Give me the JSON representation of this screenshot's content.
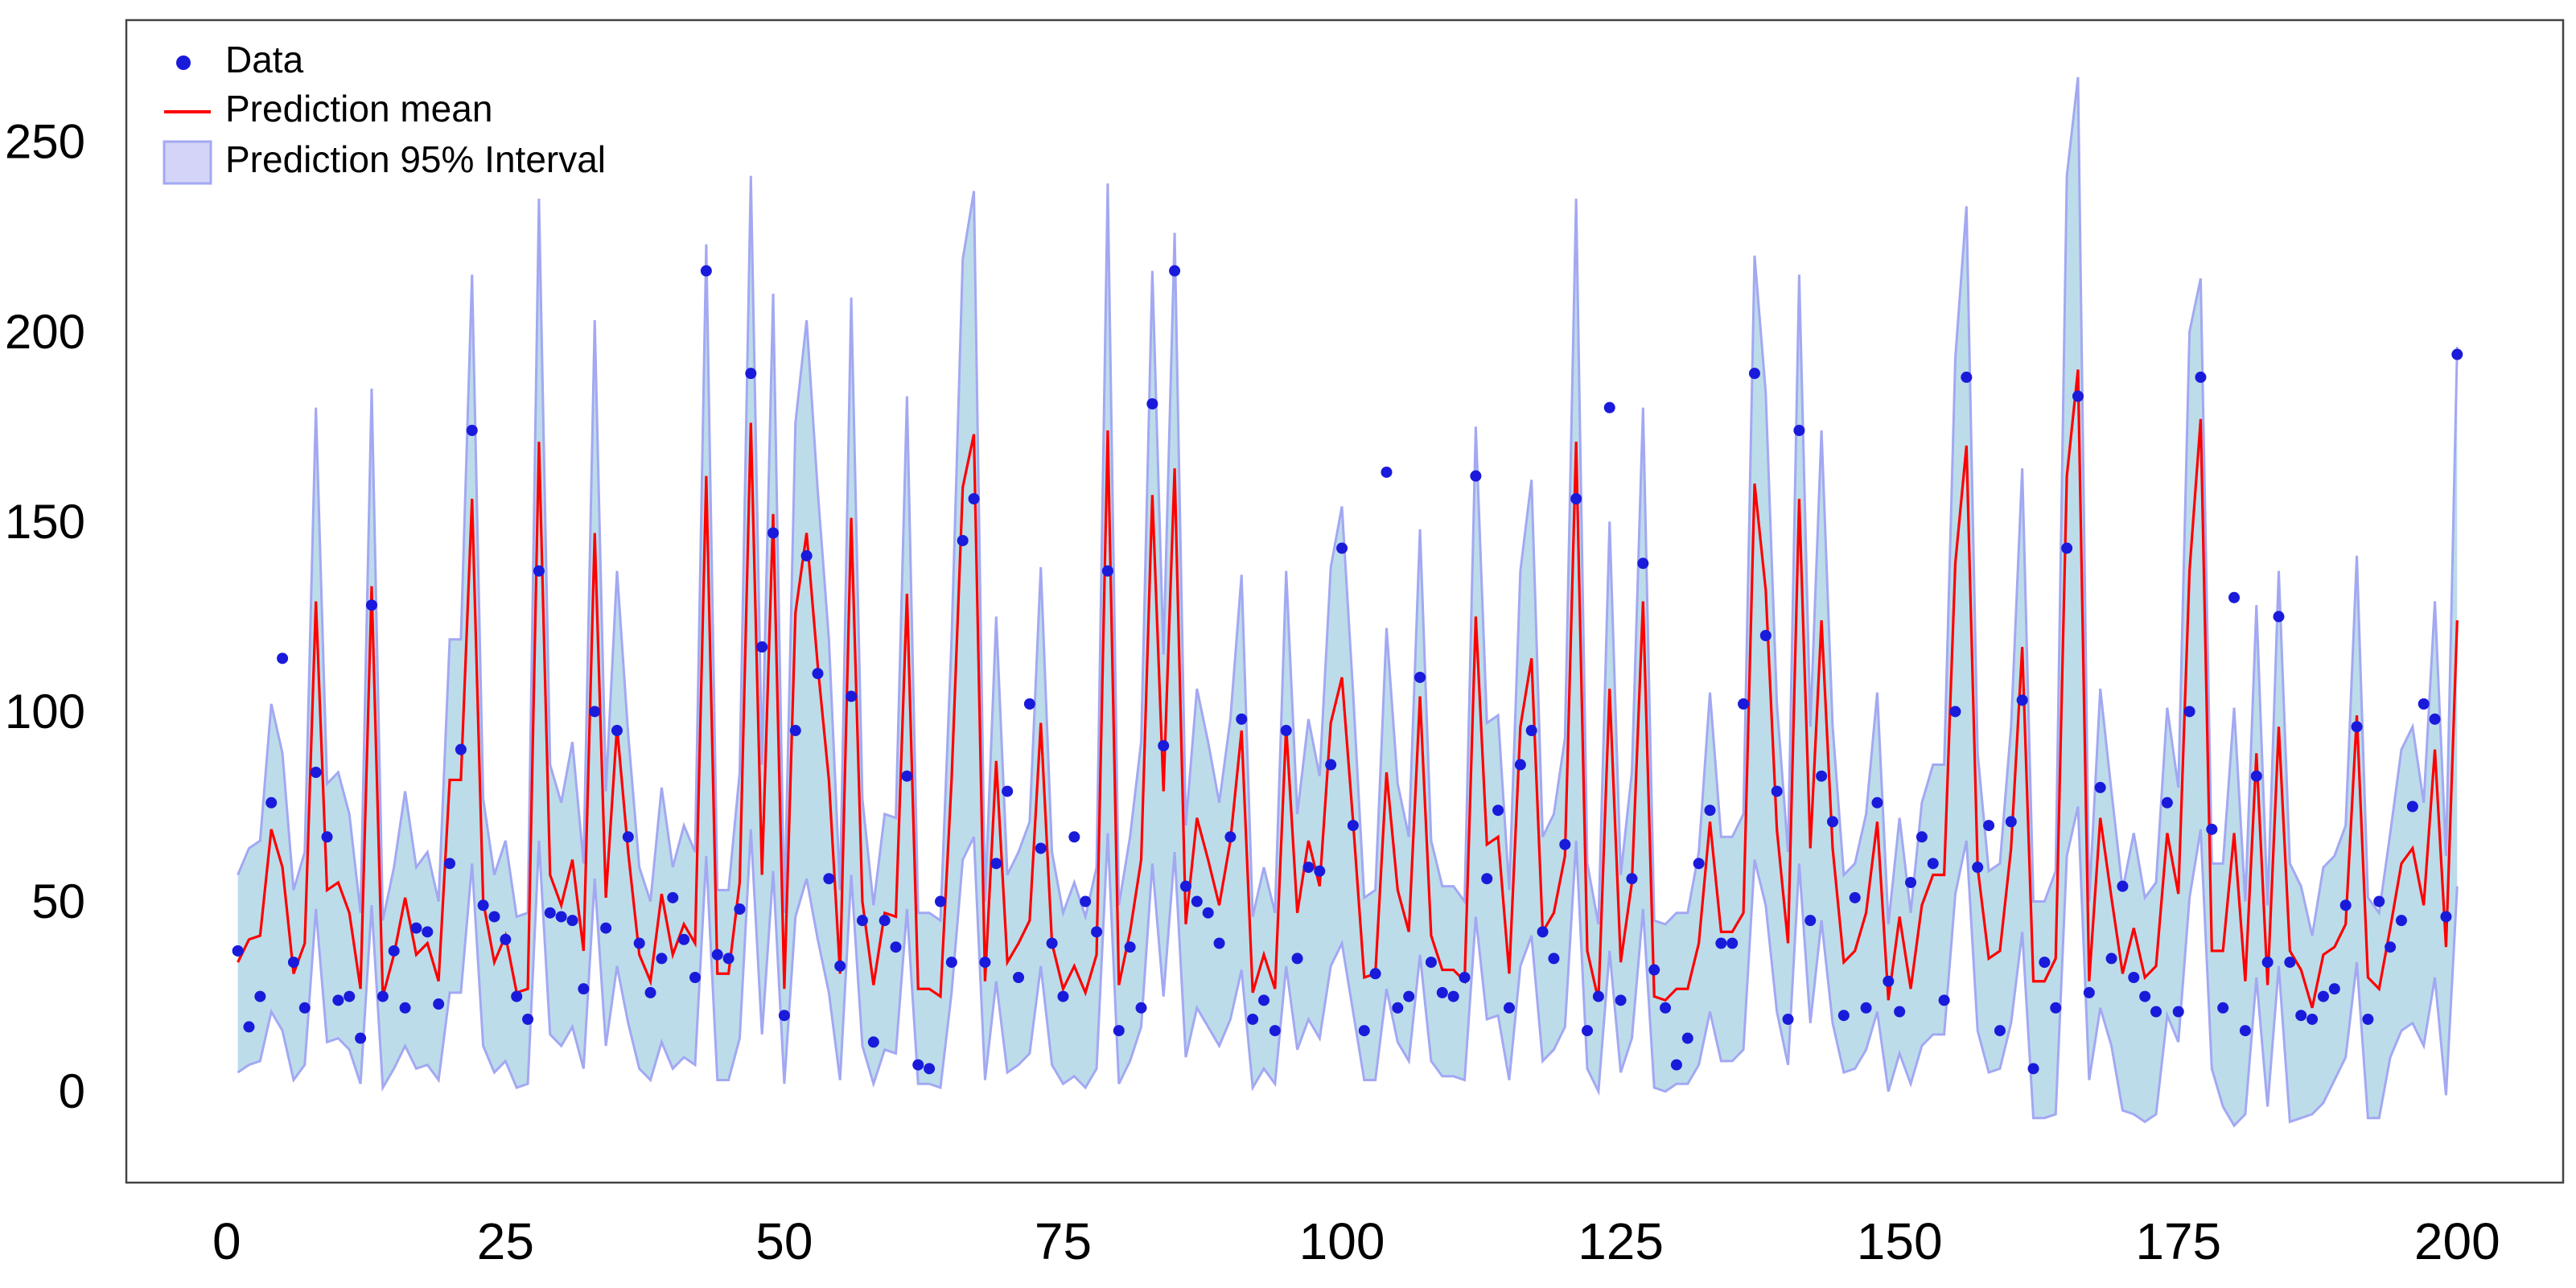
{
  "chart_data": {
    "type": "line",
    "x": [
      1,
      2,
      3,
      4,
      5,
      6,
      7,
      8,
      9,
      10,
      11,
      12,
      13,
      14,
      15,
      16,
      17,
      18,
      19,
      20,
      21,
      22,
      23,
      24,
      25,
      26,
      27,
      28,
      29,
      30,
      31,
      32,
      33,
      34,
      35,
      36,
      37,
      38,
      39,
      40,
      41,
      42,
      43,
      44,
      45,
      46,
      47,
      48,
      49,
      50,
      51,
      52,
      53,
      54,
      55,
      56,
      57,
      58,
      59,
      60,
      61,
      62,
      63,
      64,
      65,
      66,
      67,
      68,
      69,
      70,
      71,
      72,
      73,
      74,
      75,
      76,
      77,
      78,
      79,
      80,
      81,
      82,
      83,
      84,
      85,
      86,
      87,
      88,
      89,
      90,
      91,
      92,
      93,
      94,
      95,
      96,
      97,
      98,
      99,
      100,
      101,
      102,
      103,
      104,
      105,
      106,
      107,
      108,
      109,
      110,
      111,
      112,
      113,
      114,
      115,
      116,
      117,
      118,
      119,
      120,
      121,
      122,
      123,
      124,
      125,
      126,
      127,
      128,
      129,
      130,
      131,
      132,
      133,
      134,
      135,
      136,
      137,
      138,
      139,
      140,
      141,
      142,
      143,
      144,
      145,
      146,
      147,
      148,
      149,
      150,
      151,
      152,
      153,
      154,
      155,
      156,
      157,
      158,
      159,
      160,
      161,
      162,
      163,
      164,
      165,
      166,
      167,
      168,
      169,
      170,
      171,
      172,
      173,
      174,
      175,
      176,
      177,
      178,
      179,
      180,
      181,
      182,
      183,
      184,
      185,
      186,
      187,
      188,
      189,
      190,
      191,
      192,
      193,
      194,
      195,
      196,
      197,
      198,
      199,
      200
    ],
    "series": [
      {
        "name": "Prediction 95% Interval",
        "type": "band",
        "color": "#bcdcea",
        "edgecolor": "#a3a8f2",
        "lower": [
          6,
          8,
          9,
          22,
          17,
          4,
          8,
          49,
          14,
          15,
          12,
          3,
          50,
          2,
          7,
          13,
          7,
          8,
          4,
          27,
          27,
          61,
          13,
          6,
          9,
          2,
          3,
          67,
          16,
          13,
          18,
          7,
          57,
          13,
          34,
          19,
          7,
          4,
          14,
          7,
          10,
          8,
          63,
          4,
          4,
          15,
          70,
          16,
          59,
          3,
          47,
          57,
          41,
          27,
          4,
          58,
          13,
          3,
          12,
          11,
          49,
          3,
          3,
          2,
          27,
          62,
          68,
          4,
          30,
          6,
          8,
          11,
          34,
          8,
          3,
          5,
          2,
          7,
          69,
          3,
          9,
          18,
          61,
          26,
          64,
          10,
          23,
          18,
          13,
          20,
          33,
          2,
          7,
          3,
          34,
          12,
          20,
          15,
          34,
          40,
          22,
          4,
          4,
          28,
          14,
          9,
          37,
          9,
          5,
          5,
          4,
          47,
          20,
          21,
          4,
          34,
          42,
          9,
          12,
          18,
          67,
          7,
          1,
          38,
          6,
          15,
          49,
          2,
          1,
          3,
          3,
          8,
          22,
          9,
          9,
          12,
          62,
          50,
          22,
          8,
          61,
          19,
          46,
          19,
          6,
          7,
          12,
          22,
          1,
          11,
          3,
          13,
          16,
          16,
          53,
          67,
          17,
          6,
          7,
          19,
          43,
          -6,
          -6,
          -5,
          63,
          76,
          4,
          23,
          13,
          -4,
          -5,
          -7,
          -5,
          21,
          14,
          52,
          70,
          7,
          -3,
          -8,
          -5,
          31,
          -3,
          34,
          -7,
          -6,
          -5,
          -2,
          4,
          10,
          35,
          -6,
          -6,
          10,
          17,
          19,
          13,
          31,
          0,
          55
        ],
        "upper": [
          58,
          65,
          67,
          103,
          90,
          54,
          64,
          181,
          82,
          85,
          74,
          48,
          186,
          46,
          60,
          80,
          60,
          64,
          51,
          120,
          120,
          216,
          78,
          58,
          67,
          47,
          48,
          236,
          87,
          77,
          93,
          61,
          204,
          80,
          138,
          95,
          60,
          51,
          81,
          60,
          71,
          64,
          224,
          54,
          54,
          85,
          242,
          87,
          211,
          48,
          177,
          204,
          159,
          120,
          54,
          210,
          78,
          50,
          74,
          73,
          184,
          48,
          48,
          46,
          120,
          220,
          238,
          51,
          126,
          58,
          64,
          72,
          139,
          64,
          48,
          56,
          47,
          60,
          240,
          50,
          68,
          93,
          217,
          116,
          227,
          71,
          107,
          93,
          77,
          99,
          137,
          47,
          60,
          48,
          138,
          74,
          99,
          84,
          139,
          155,
          106,
          52,
          54,
          123,
          82,
          68,
          149,
          67,
          55,
          55,
          51,
          176,
          98,
          100,
          54,
          138,
          162,
          68,
          74,
          94,
          236,
          61,
          45,
          151,
          58,
          85,
          181,
          46,
          45,
          48,
          48,
          64,
          106,
          68,
          68,
          74,
          221,
          185,
          103,
          64,
          216,
          97,
          175,
          97,
          58,
          61,
          74,
          106,
          45,
          73,
          48,
          77,
          87,
          87,
          194,
          234,
          90,
          59,
          61,
          97,
          165,
          51,
          51,
          59,
          242,
          268,
          51,
          107,
          80,
          54,
          69,
          52,
          56,
          102,
          81,
          201,
          215,
          61,
          61,
          102,
          51,
          129,
          50,
          138,
          61,
          55,
          42,
          60,
          63,
          71,
          142,
          52,
          48,
          69,
          91,
          97,
          77,
          130,
          63,
          197
        ]
      },
      {
        "name": "Prediction mean",
        "type": "line",
        "color": "#ff0000",
        "values": [
          35,
          41,
          42,
          70,
          60,
          32,
          40,
          130,
          54,
          56,
          48,
          28,
          134,
          26,
          37,
          52,
          37,
          40,
          30,
          83,
          83,
          157,
          51,
          35,
          42,
          27,
          28,
          172,
          58,
          50,
          62,
          38,
          148,
          52,
          97,
          64,
          37,
          30,
          53,
          37,
          45,
          40,
          163,
          32,
          32,
          56,
          177,
          58,
          153,
          28,
          127,
          148,
          113,
          83,
          32,
          152,
          51,
          29,
          48,
          47,
          132,
          28,
          28,
          26,
          83,
          160,
          174,
          30,
          88,
          35,
          40,
          46,
          98,
          40,
          28,
          34,
          27,
          37,
          175,
          29,
          43,
          62,
          158,
          80,
          165,
          45,
          73,
          62,
          50,
          67,
          96,
          27,
          37,
          28,
          97,
          48,
          67,
          55,
          98,
          110,
          72,
          31,
          32,
          85,
          54,
          43,
          105,
          42,
          33,
          33,
          30,
          126,
          66,
          68,
          32,
          97,
          115,
          43,
          48,
          63,
          172,
          38,
          25,
          107,
          35,
          56,
          130,
          26,
          25,
          28,
          28,
          40,
          72,
          43,
          43,
          48,
          161,
          133,
          70,
          40,
          157,
          65,
          125,
          65,
          35,
          38,
          48,
          72,
          25,
          47,
          28,
          50,
          58,
          58,
          140,
          171,
          60,
          36,
          38,
          65,
          118,
          30,
          30,
          36,
          163,
          191,
          30,
          73,
          52,
          32,
          44,
          31,
          34,
          69,
          53,
          138,
          178,
          38,
          38,
          69,
          30,
          90,
          29,
          97,
          38,
          33,
          23,
          37,
          39,
          45,
          100,
          31,
          28,
          44,
          61,
          65,
          50,
          91,
          39,
          125
        ]
      },
      {
        "name": "Data",
        "type": "scatter",
        "color": "#1a1adb",
        "values": [
          38,
          18,
          26,
          77,
          115,
          35,
          23,
          85,
          68,
          25,
          26,
          15,
          129,
          26,
          38,
          23,
          44,
          43,
          24,
          61,
          91,
          175,
          50,
          47,
          41,
          26,
          20,
          138,
          48,
          47,
          46,
          28,
          101,
          44,
          96,
          68,
          40,
          27,
          36,
          52,
          41,
          31,
          217,
          37,
          36,
          49,
          190,
          118,
          148,
          21,
          96,
          142,
          111,
          57,
          34,
          105,
          46,
          14,
          46,
          39,
          84,
          8,
          7,
          51,
          35,
          146,
          157,
          35,
          61,
          80,
          31,
          103,
          65,
          40,
          26,
          68,
          51,
          43,
          138,
          17,
          39,
          23,
          182,
          92,
          217,
          55,
          51,
          48,
          40,
          68,
          99,
          20,
          25,
          17,
          96,
          36,
          60,
          59,
          87,
          144,
          71,
          17,
          32,
          164,
          23,
          26,
          110,
          35,
          27,
          26,
          31,
          163,
          57,
          75,
          23,
          87,
          96,
          43,
          36,
          66,
          157,
          17,
          26,
          181,
          25,
          57,
          140,
          33,
          23,
          8,
          15,
          61,
          75,
          40,
          40,
          103,
          190,
          121,
          80,
          20,
          175,
          46,
          84,
          72,
          21,
          52,
          23,
          77,
          30,
          22,
          56,
          68,
          61,
          25,
          101,
          189,
          60,
          71,
          17,
          72,
          104,
          7,
          35,
          23,
          144,
          184,
          27,
          81,
          36,
          55,
          31,
          26,
          22,
          77,
          22,
          101,
          189,
          70,
          23,
          131,
          17,
          84,
          35,
          126,
          35,
          21,
          20,
          26,
          28,
          50,
          97,
          20,
          51,
          39,
          46,
          76,
          103,
          99,
          47,
          195
        ]
      }
    ],
    "xlim": [
      -9,
      209.5
    ],
    "ylim": [
      -23,
      283
    ],
    "xticks": [
      0,
      25,
      50,
      75,
      100,
      125,
      150,
      175,
      200
    ],
    "yticks": [
      0,
      50,
      100,
      150,
      200,
      250
    ],
    "grid": false,
    "legend": "upper left"
  }
}
